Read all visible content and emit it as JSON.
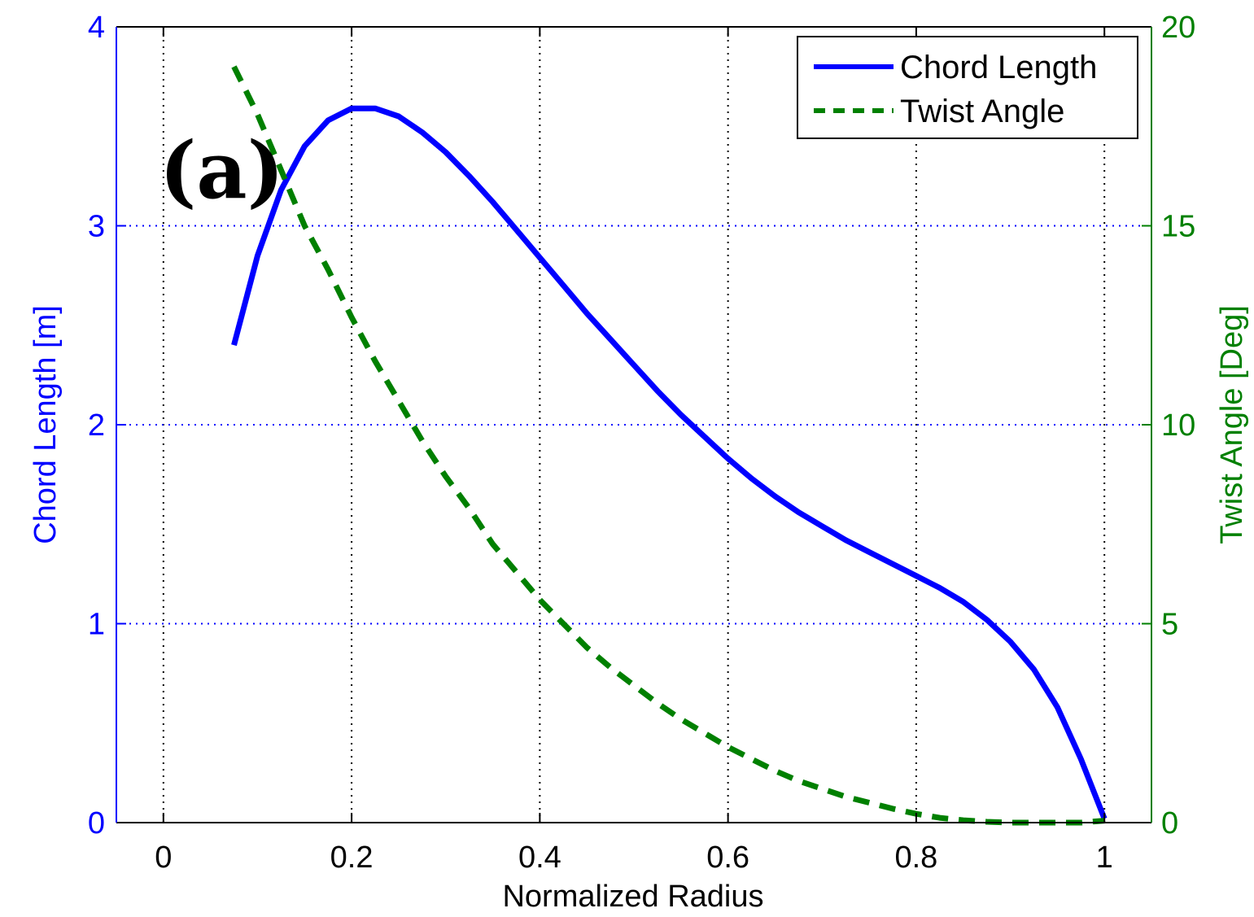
{
  "chart_data": {
    "type": "line",
    "panel_label": "(a)",
    "xlabel": "Normalized Radius",
    "ylabel_left": "Chord Length [m]",
    "ylabel_right": "Twist Angle [Deg]",
    "xlim": [
      -0.05,
      1.05
    ],
    "ylim_left": [
      0,
      4
    ],
    "ylim_right": [
      0,
      20
    ],
    "x_ticks": [
      "0",
      "0.2",
      "0.4",
      "0.6",
      "0.8",
      "1"
    ],
    "y_left_ticks": [
      "0",
      "1",
      "2",
      "3",
      "4"
    ],
    "y_right_ticks": [
      "0",
      "5",
      "10",
      "15",
      "20"
    ],
    "grid": true,
    "legend_position": "top-right",
    "colors": {
      "chord": "#0000ff",
      "twist": "#008000"
    },
    "series": [
      {
        "name": "Chord Length",
        "axis": "left",
        "style": "solid",
        "x": [
          0.075,
          0.1,
          0.125,
          0.15,
          0.175,
          0.2,
          0.225,
          0.25,
          0.275,
          0.3,
          0.325,
          0.35,
          0.375,
          0.4,
          0.425,
          0.45,
          0.475,
          0.5,
          0.525,
          0.55,
          0.575,
          0.6,
          0.625,
          0.65,
          0.675,
          0.7,
          0.725,
          0.75,
          0.775,
          0.8,
          0.825,
          0.85,
          0.875,
          0.9,
          0.925,
          0.95,
          0.975,
          1.0
        ],
        "values": [
          2.4,
          2.85,
          3.18,
          3.4,
          3.53,
          3.59,
          3.59,
          3.55,
          3.47,
          3.37,
          3.25,
          3.12,
          2.98,
          2.84,
          2.7,
          2.56,
          2.43,
          2.3,
          2.17,
          2.05,
          1.94,
          1.83,
          1.73,
          1.64,
          1.56,
          1.49,
          1.42,
          1.36,
          1.3,
          1.24,
          1.18,
          1.11,
          1.02,
          0.91,
          0.77,
          0.58,
          0.32,
          0.02
        ]
      },
      {
        "name": "Twist Angle",
        "axis": "right",
        "style": "dashed",
        "x": [
          0.075,
          0.1,
          0.125,
          0.15,
          0.175,
          0.2,
          0.225,
          0.25,
          0.275,
          0.3,
          0.325,
          0.35,
          0.375,
          0.4,
          0.425,
          0.45,
          0.475,
          0.5,
          0.525,
          0.55,
          0.575,
          0.6,
          0.625,
          0.65,
          0.675,
          0.7,
          0.725,
          0.75,
          0.775,
          0.8,
          0.825,
          0.85,
          0.875,
          0.9,
          0.925,
          0.95,
          0.975,
          1.0
        ],
        "values": [
          19.0,
          17.8,
          16.4,
          15.0,
          13.9,
          12.7,
          11.6,
          10.6,
          9.6,
          8.7,
          7.9,
          7.0,
          6.3,
          5.6,
          5.0,
          4.4,
          3.9,
          3.45,
          3.0,
          2.6,
          2.25,
          1.9,
          1.6,
          1.3,
          1.05,
          0.85,
          0.65,
          0.5,
          0.35,
          0.22,
          0.12,
          0.06,
          0.02,
          0.0,
          0.0,
          0.0,
          0.0,
          0.05
        ]
      }
    ]
  }
}
